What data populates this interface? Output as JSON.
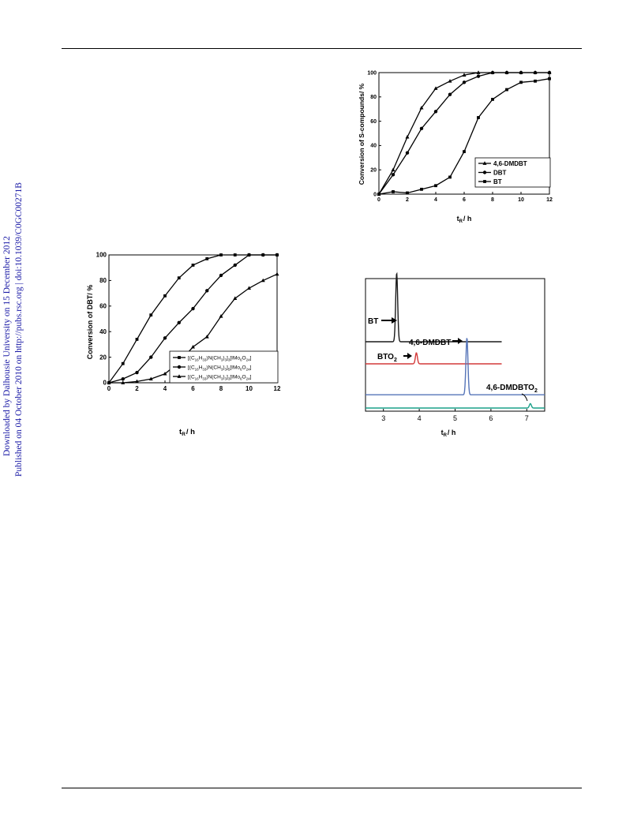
{
  "sidebar": {
    "line1": "Downloaded by Dalhousie University on 15 December 2012",
    "line2": "Published on 04 October 2010 on http://pubs.rsc.org | doi:10.1039/C0GC00271B"
  },
  "figures": [
    {
      "ylabel": "Conversion of DBT/ %",
      "xlabel_main": "t",
      "xlabel_sub": "R",
      "xlabel_unit": "/ h",
      "legend": [
        {
          "pre": "[(C",
          "s1": "16",
          "m1": "H",
          "s2": "33",
          "m2": ")N(CH",
          "s3": "3",
          "m3": ")",
          "s4": "3",
          "m4": "]",
          "s5": "3",
          "m5": "[IMo",
          "s6": "6",
          "m6": "O",
          "s7": "24",
          "post": "]"
        },
        {
          "pre": "[(C",
          "s1": "16",
          "m1": "H",
          "s2": "33",
          "m2": ")N(CH",
          "s3": "3",
          "m3": ")",
          "s4": "3",
          "m4": "]",
          "s5": "5",
          "m5": "[IMo",
          "s6": "6",
          "m6": "O",
          "s7": "24",
          "post": "]"
        },
        {
          "pre": "[(C",
          "s1": "16",
          "m1": "H",
          "s2": "33",
          "m2": ")N(CH",
          "s3": "3",
          "m3": ")",
          "s4": "3",
          "m4": "]",
          "s5": "3",
          "m5": "[IMo",
          "s6": "6",
          "m6": "O",
          "s7": "24",
          "post": "]"
        }
      ]
    },
    {
      "ylabel": "Conversion of S-compounds/ %",
      "xlabel_main": "t",
      "xlabel_sub": "R",
      "xlabel_unit": "/ h",
      "legend": [
        "4,6-DMDBT",
        "DBT",
        "BT"
      ]
    },
    {
      "xlabel_main": "t",
      "xlabel_sub": "R",
      "xlabel_unit": "/ h",
      "labels": {
        "bt": "BT",
        "dmdbt": "4,6-DMDBT",
        "bto2_main": "BTO",
        "bto2_sub": "2",
        "dmdbto2_main": "4,6-DMDBTO",
        "dmdbto2_sub": "2"
      }
    }
  ],
  "chart_data": [
    {
      "type": "line",
      "xlim": [
        0,
        12
      ],
      "ylim": [
        0,
        100
      ],
      "xticks": [
        0,
        2,
        4,
        6,
        8,
        10,
        12
      ],
      "yticks": [
        0,
        20,
        40,
        60,
        80,
        100
      ],
      "reference_line_y": 100,
      "series": [
        {
          "marker": "square",
          "x": [
            0,
            1,
            2,
            3,
            4,
            5,
            6,
            7,
            8,
            9,
            10,
            11,
            12
          ],
          "y": [
            0,
            15,
            34,
            53,
            68,
            82,
            92,
            97,
            100,
            100,
            100,
            100,
            100
          ]
        },
        {
          "marker": "circle",
          "x": [
            0,
            1,
            2,
            3,
            4,
            5,
            6,
            7,
            8,
            9,
            10,
            11,
            12
          ],
          "y": [
            0,
            3,
            8,
            20,
            35,
            47,
            58,
            72,
            84,
            92,
            100,
            100,
            100
          ]
        },
        {
          "marker": "triangle",
          "x": [
            0,
            1,
            2,
            3,
            4,
            5,
            6,
            7,
            8,
            9,
            10,
            11,
            12
          ],
          "y": [
            0,
            0,
            1,
            3,
            7,
            16,
            28,
            36,
            52,
            66,
            74,
            80,
            85
          ]
        }
      ]
    },
    {
      "type": "line",
      "xlim": [
        0,
        12
      ],
      "ylim": [
        0,
        100
      ],
      "xticks": [
        0,
        2,
        4,
        6,
        8,
        10,
        12
      ],
      "yticks": [
        0,
        20,
        40,
        60,
        80,
        100
      ],
      "reference_line_y": 100,
      "series": [
        {
          "marker": "triangle",
          "x": [
            0,
            1,
            2,
            3,
            4,
            5,
            6,
            7,
            8,
            9,
            10,
            11,
            12
          ],
          "y": [
            0,
            20,
            47,
            71,
            87,
            93,
            98,
            100,
            100,
            100,
            100,
            100,
            100
          ]
        },
        {
          "marker": "circle",
          "x": [
            0,
            1,
            2,
            3,
            4,
            5,
            6,
            7,
            8,
            9,
            10,
            11,
            12
          ],
          "y": [
            0,
            16,
            34,
            54,
            68,
            82,
            92,
            97,
            100,
            100,
            100,
            100,
            100
          ]
        },
        {
          "marker": "square",
          "x": [
            0,
            1,
            2,
            3,
            4,
            5,
            6,
            7,
            8,
            9,
            10,
            11,
            12
          ],
          "y": [
            0,
            2,
            1,
            4,
            7,
            14,
            35,
            63,
            78,
            86,
            92,
            93,
            95
          ]
        }
      ]
    },
    {
      "type": "line",
      "xlim": [
        2.5,
        7.5
      ],
      "xticks": [
        3,
        4,
        5,
        6,
        7
      ],
      "series": [
        {
          "color": "#1a1a1a",
          "peak_x": 3.37,
          "baseline_offset": 3.0,
          "peak_height": 3.1,
          "x_end": 6.3
        },
        {
          "color": "#d43a3a",
          "peak_x": 3.92,
          "baseline_offset": 2.0,
          "peak_height": 0.5,
          "x_end": 6.3
        },
        {
          "color": "#5574b8",
          "peak_x": 5.33,
          "baseline_offset": 0.6,
          "peak_height": 2.6,
          "x_end": 7.5
        },
        {
          "color": "#1aa08a",
          "peak_x": 7.1,
          "baseline_offset": 0.0,
          "peak_height": 0.2,
          "x_end": 7.5
        }
      ]
    }
  ]
}
